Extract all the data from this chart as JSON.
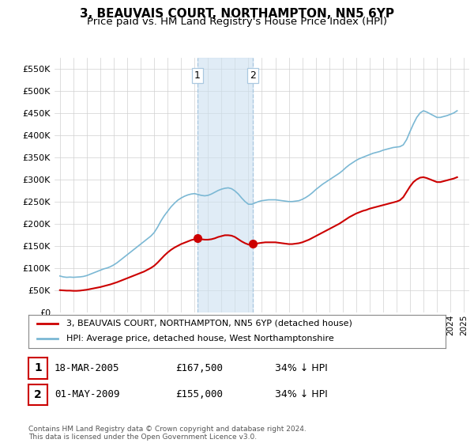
{
  "title": "3, BEAUVAIS COURT, NORTHAMPTON, NN5 6YP",
  "subtitle": "Price paid vs. HM Land Registry's House Price Index (HPI)",
  "ylim": [
    0,
    575000
  ],
  "yticks": [
    0,
    50000,
    100000,
    150000,
    200000,
    250000,
    300000,
    350000,
    400000,
    450000,
    500000,
    550000
  ],
  "xlim_start": 1994.6,
  "xlim_end": 2025.4,
  "hpi_color": "#7bb8d4",
  "price_color": "#cc0000",
  "background_color": "#ffffff",
  "grid_color": "#d0d0d0",
  "marker1_x": 2005.21,
  "marker1_y": 167500,
  "marker2_x": 2009.33,
  "marker2_y": 155000,
  "legend_line1": "3, BEAUVAIS COURT, NORTHAMPTON, NN5 6YP (detached house)",
  "legend_line2": "HPI: Average price, detached house, West Northamptonshire",
  "table_row1": [
    "1",
    "18-MAR-2005",
    "£167,500",
    "34% ↓ HPI"
  ],
  "table_row2": [
    "2",
    "01-MAY-2009",
    "£155,000",
    "34% ↓ HPI"
  ],
  "footer": "Contains HM Land Registry data © Crown copyright and database right 2024.\nThis data is licensed under the Open Government Licence v3.0."
}
